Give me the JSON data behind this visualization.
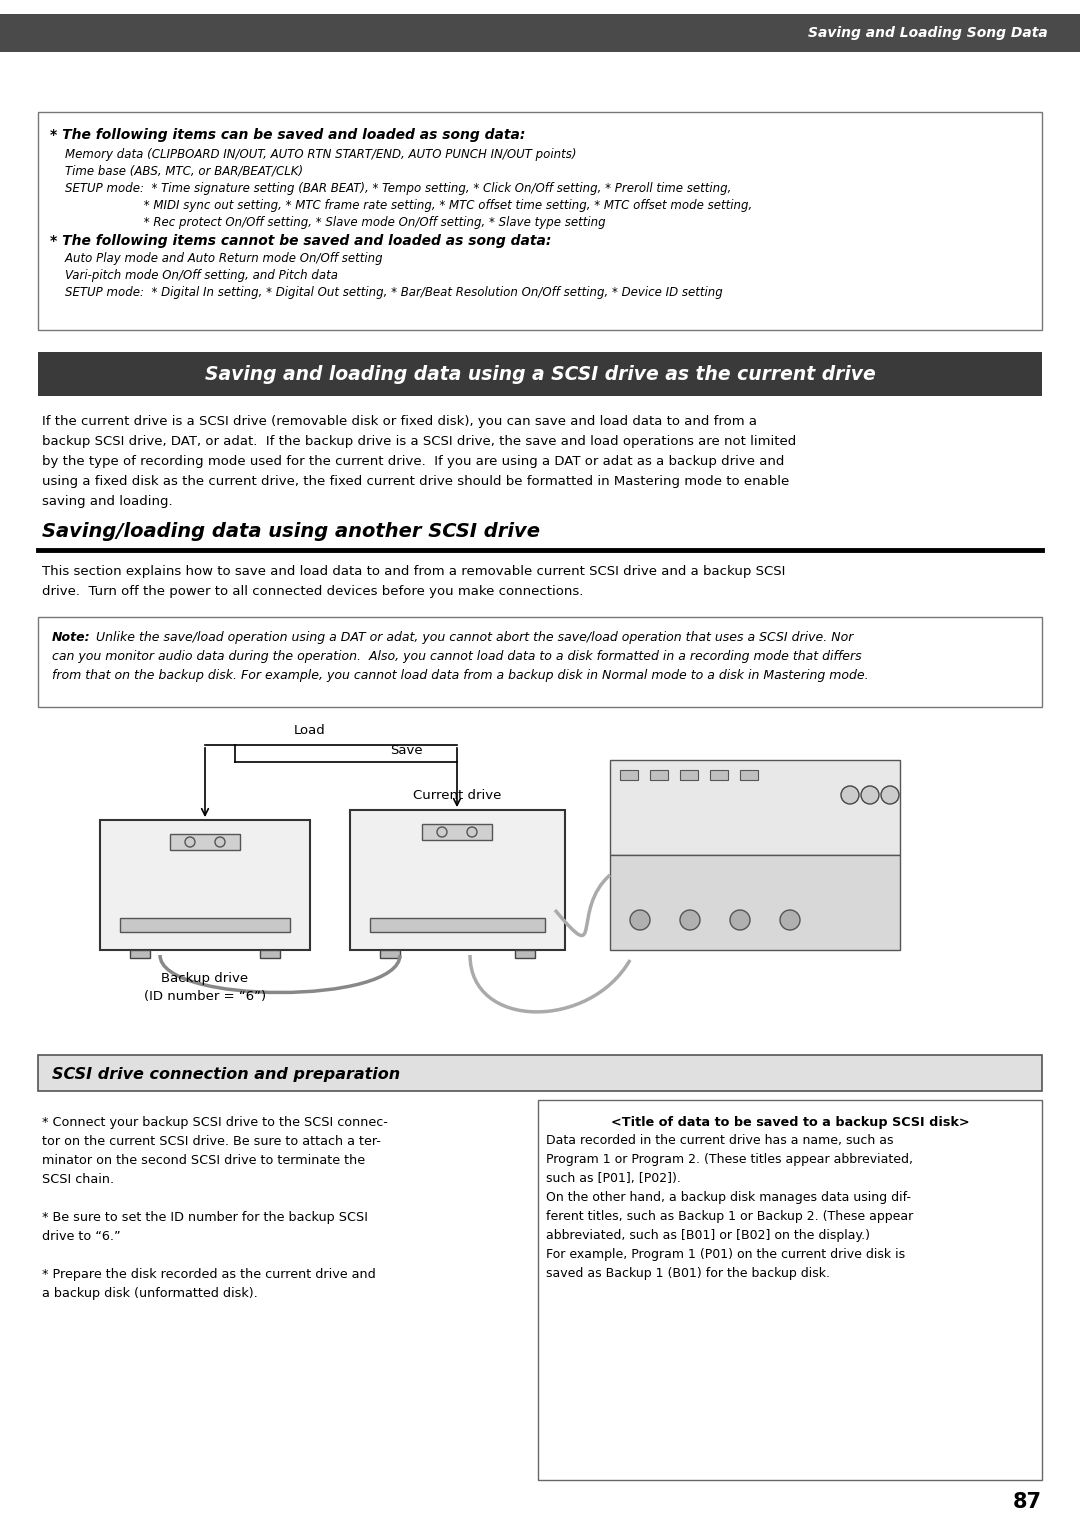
{
  "page_bg": "#ffffff",
  "header_bg": "#4a4a4a",
  "header_text": "Saving and Loading Song Data",
  "header_text_color": "#ffffff",
  "box1_title1": "* The following items can be saved and loaded as song data:",
  "box1_body1": [
    "    Memory data (CLIPBOARD IN/OUT, AUTO RTN START/END, AUTO PUNCH IN/OUT points)",
    "    Time base (ABS, MTC, or BAR/BEAT/CLK)",
    "    SETUP mode:  * Time signature setting (BAR BEAT), * Tempo setting, * Click On/Off setting, * Preroll time setting,",
    "                         * MIDI sync out setting, * MTC frame rate setting, * MTC offset time setting, * MTC offset mode setting,",
    "                         * Rec protect On/Off setting, * Slave mode On/Off setting, * Slave type setting"
  ],
  "box1_title2": "* The following items cannot be saved and loaded as song data:",
  "box1_body2": [
    "    Auto Play mode and Auto Return mode On/Off setting",
    "    Vari-pitch mode On/Off setting, and Pitch data",
    "    SETUP mode:  * Digital In setting, * Digital Out setting, * Bar/Beat Resolution On/Off setting, * Device ID setting"
  ],
  "section1_title": "Saving and loading data using a SCSI drive as the current drive",
  "section1_title_bg": "#3a3a3a",
  "section1_title_color": "#ffffff",
  "section1_body": [
    "If the current drive is a SCSI drive (removable disk or fixed disk), you can save and load data to and from a",
    "backup SCSI drive, DAT, or adat.  If the backup drive is a SCSI drive, the save and load operations are not limited",
    "by the type of recording mode used for the current drive.  If you are using a DAT or adat as a backup drive and",
    "using a fixed disk as the current drive, the fixed current drive should be formatted in Mastering mode to enable",
    "saving and loading."
  ],
  "section2_title": "Saving/loading data using another SCSI drive",
  "section2_body": [
    "This section explains how to save and load data to and from a removable current SCSI drive and a backup SCSI",
    "drive.  Turn off the power to all connected devices before you make connections."
  ],
  "note_body": [
    "Unlike the save/load operation using a DAT or adat, you cannot abort the save/load operation that uses a SCSI drive. Nor",
    "can you monitor audio data during the operation.  Also, you cannot load data to a disk formatted in a recording mode that differs",
    "from that on the backup disk. For example, you cannot load data from a backup disk in Normal mode to a disk in Mastering mode."
  ],
  "diagram_load_label": "Load",
  "diagram_save_label": "Save",
  "diagram_current_label": "Current drive",
  "diagram_backup_label1": "Backup drive",
  "diagram_backup_label2": "(ID number = “6”)",
  "scsi_section_title": "SCSI drive connection and preparation",
  "left_col_lines": [
    "* Connect your backup SCSI drive to the SCSI connec-",
    "tor on the current SCSI drive. Be sure to attach a ter-",
    "minator on the second SCSI drive to terminate the",
    "SCSI chain.",
    "",
    "* Be sure to set the ID number for the backup SCSI",
    "drive to “6.”",
    "",
    "* Prepare the disk recorded as the current drive and",
    "a backup disk (unformatted disk)."
  ],
  "right_col_title": "<Title of data to be saved to a backup SCSI disk>",
  "right_col_lines": [
    "Data recorded in the current drive has a name, such as",
    "Program 1 or Program 2. (These titles appear abbreviated,",
    "such as [P01], [P02]).",
    "On the other hand, a backup disk manages data using dif-",
    "ferent titles, such as Backup 1 or Backup 2. (These appear",
    "abbreviated, such as [B01] or [B02] on the display.)",
    "For example, Program 1 (P01) on the current drive disk is",
    "saved as Backup 1 (B01) for the backup disk."
  ],
  "page_number": "87"
}
